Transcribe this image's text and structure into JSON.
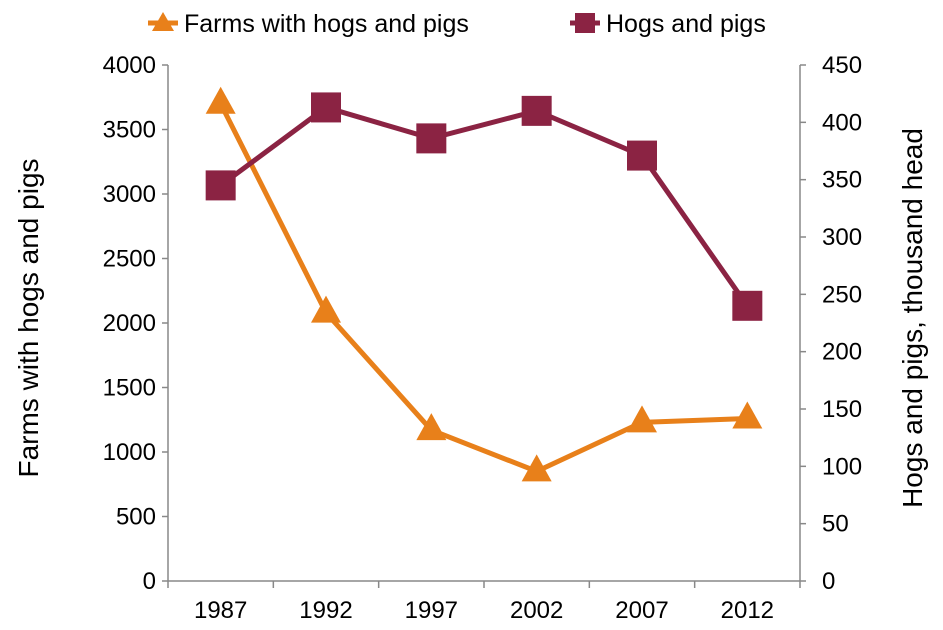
{
  "chart_data": {
    "type": "line",
    "title": "",
    "categories": [
      "1987",
      "1992",
      "1997",
      "2002",
      "2007",
      "2012"
    ],
    "series": [
      {
        "name": "Farms with hogs and pigs",
        "axis": "left",
        "marker": "triangle",
        "color": "#E8801A",
        "values": [
          3700,
          2080,
          1170,
          850,
          1230,
          1260
        ]
      },
      {
        "name": "Hogs and pigs",
        "axis": "right",
        "marker": "square",
        "color": "#8B2343",
        "values": [
          345,
          413,
          386,
          410,
          371,
          240
        ]
      }
    ],
    "y_left": {
      "label": "Farms with hogs and pigs",
      "ylim": [
        0,
        4000
      ],
      "ticks": [
        "0",
        "500",
        "1000",
        "1500",
        "2000",
        "2500",
        "3000",
        "3500",
        "4000"
      ]
    },
    "y_right": {
      "label": "Hogs and pigs, thousand head",
      "ylim": [
        0,
        450
      ],
      "ticks": [
        "0",
        "50",
        "100",
        "150",
        "200",
        "250",
        "300",
        "350",
        "400",
        "450"
      ]
    },
    "grid": false,
    "legend_position": "top"
  }
}
